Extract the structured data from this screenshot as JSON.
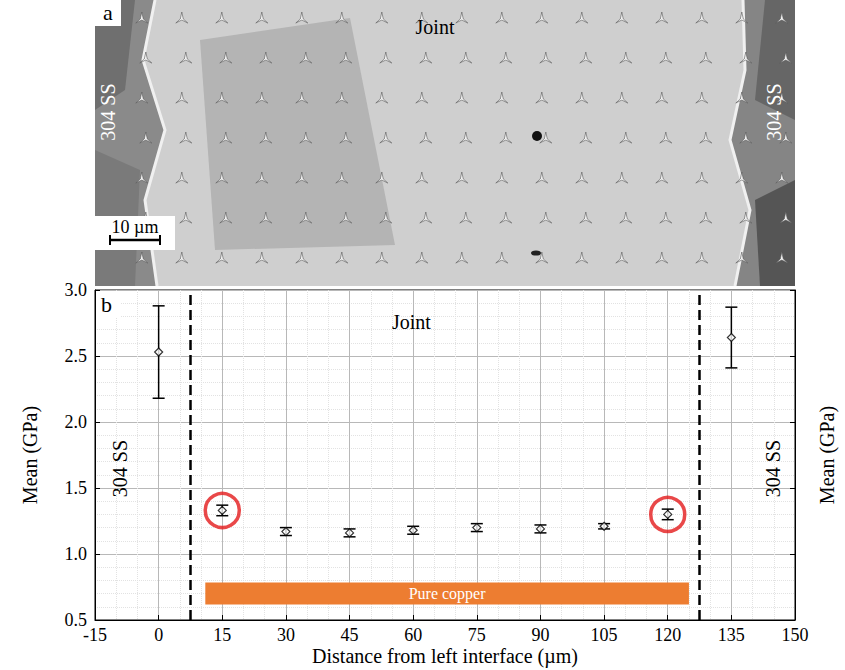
{
  "micrograph": {
    "panel_label": "a",
    "title": "Joint",
    "left_label": "304 SS",
    "right_label": "304 SS",
    "scale_bar": "10 µm"
  },
  "chart_data": {
    "type": "scatter",
    "panel_label": "b",
    "xlabel": "Distance from left interface (µm)",
    "ylabel": "Mean (GPa)",
    "y2label": "Mean (GPa)",
    "x": [
      0,
      15,
      30,
      45,
      60,
      75,
      90,
      105,
      120,
      135
    ],
    "values": [
      2.53,
      1.33,
      1.17,
      1.16,
      1.18,
      1.2,
      1.19,
      1.21,
      1.3,
      2.64
    ],
    "errors": [
      0.35,
      0.04,
      0.03,
      0.03,
      0.03,
      0.03,
      0.03,
      0.02,
      0.04,
      0.23
    ],
    "color": "#000000",
    "marker": "diamond",
    "xlim": [
      -15,
      150
    ],
    "xticks": [
      -15,
      0,
      15,
      30,
      45,
      60,
      75,
      90,
      105,
      120,
      135,
      150
    ],
    "ylim": [
      0.5,
      3.0
    ],
    "yticks": [
      0.5,
      {
        "value": 1.0,
        "label": "1.0"
      },
      1.5,
      {
        "value": 2.0,
        "label": "2.0"
      },
      2.5,
      {
        "value": 3.0,
        "label": "3.0"
      }
    ],
    "grid": true,
    "interfaces": [
      7.5,
      127.5
    ],
    "highlighted": {
      "x": [
        15,
        120
      ],
      "color": "#e31a1c"
    },
    "band": {
      "label": "Pure copper",
      "x": [
        11,
        125
      ],
      "y": 0.7,
      "color": "#ed7d31"
    },
    "annotations": {
      "joint": "Joint",
      "left": "304 SS",
      "right": "304 SS"
    }
  }
}
